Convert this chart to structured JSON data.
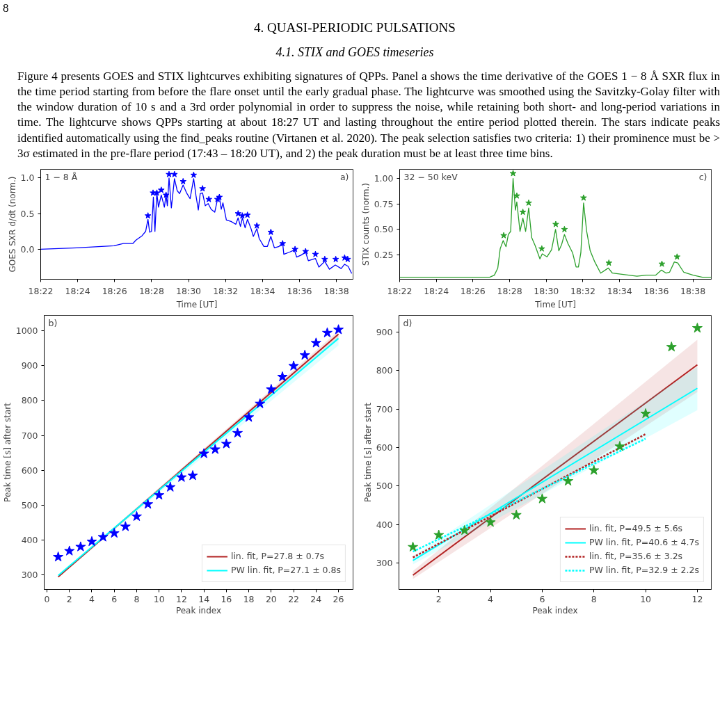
{
  "chart_data": [
    {
      "type": "other",
      "title": "4. QUASI-PERIODIC PULSATIONS",
      "subtitle": "4.1. STIX and GOES timeseries",
      "annotations": [
        "8",
        "Figure 4 presents GOES and STIX lightcurves exhibiting signatures of QPPs. Panel a shows the time derivative of the GOES 1 − 8 Å SXR flux in the time period starting from before the flare onset until the early gradual phase. The lightcurve was smoothed using the Savitzky-Golay filter with the window duration of 10 s and a 3rd order polynomial in order to suppress the noise, while retaining both short- and long-period variations in time. The lightcurve shows QPPs starting at about 18:27 UT and lasting throughout the entire period plotted therein. The stars indicate peaks identified automatically using the find_peaks routine (Virtanen et al. 2020). The peak selection satisfies two criteria: 1) their prominence must be > 3σ estimated in the pre-flare period (17:43 – 18:20 UT), and 2) the peak duration must be at least three time bins."
      ]
    },
    {
      "type": "line",
      "xlabel": "Time [UT]",
      "ylabel": "GOES SXR d/dt (norm.)",
      "annotations": [
        "1 − 8 Å",
        "a)"
      ],
      "grid": false,
      "legend": false,
      "xlim": [
        18.3667,
        18.6483
      ],
      "ylim": [
        -0.42,
        1.12
      ],
      "xticks": [
        {
          "value": 18.3667,
          "label": "18:22"
        },
        {
          "value": 18.4,
          "label": "18:24"
        },
        {
          "value": 18.4333,
          "label": "18:26"
        },
        {
          "value": 18.4667,
          "label": "18:28"
        },
        {
          "value": 18.5,
          "label": "18:30"
        },
        {
          "value": 18.5333,
          "label": "18:32"
        },
        {
          "value": 18.5667,
          "label": "18:34"
        },
        {
          "value": 18.6,
          "label": "18:36"
        },
        {
          "value": 18.6333,
          "label": "18:38"
        }
      ],
      "yticks": [
        {
          "value": 0,
          "label": "0.0"
        },
        0.5,
        {
          "value": 1,
          "label": "1.0"
        }
      ],
      "series": [
        {
          "type": "line",
          "color": "#0000ff",
          "x": [
            18.3667,
            18.399,
            18.4328,
            18.4412,
            18.4497,
            18.4528,
            18.4581,
            18.4613,
            18.4634,
            18.4649,
            18.4666,
            18.4683,
            18.4697,
            18.4714,
            18.4729,
            18.4754,
            18.4782,
            18.4797,
            18.4809,
            18.4824,
            18.4845,
            18.4873,
            18.4898,
            18.4919,
            18.4951,
            18.4982,
            18.5014,
            18.5046,
            18.5067,
            18.5088,
            18.5105,
            18.5126,
            18.5151,
            18.5177,
            18.5204,
            18.5236,
            18.5261,
            18.5278,
            18.5295,
            18.531,
            18.5341,
            18.5383,
            18.5426,
            18.5447,
            18.5468,
            18.5485,
            18.551,
            18.5531,
            18.5563,
            18.5584,
            18.5616,
            18.5637,
            18.5679,
            18.5711,
            18.5742,
            18.5774,
            18.5816,
            18.5848,
            18.5859,
            18.5911,
            18.5954,
            18.5975,
            18.6017,
            18.6055,
            18.608,
            18.6144,
            18.6175,
            18.6228,
            18.627,
            18.6323,
            18.6376,
            18.6407,
            18.6439,
            18.6471
          ],
          "values": [
            0.0,
            0.02,
            0.05,
            0.08,
            0.08,
            0.13,
            0.19,
            0.25,
            0.42,
            0.24,
            0.25,
            0.73,
            0.25,
            0.79,
            0.59,
            0.76,
            0.59,
            0.76,
            0.61,
            1.0,
            0.58,
            0.99,
            0.82,
            0.78,
            0.9,
            0.79,
            0.71,
            0.99,
            0.75,
            0.55,
            0.78,
            0.79,
            0.61,
            0.64,
            0.56,
            0.52,
            0.7,
            0.73,
            0.56,
            0.65,
            0.41,
            0.39,
            0.35,
            0.44,
            0.32,
            0.44,
            0.3,
            0.42,
            0.29,
            0.18,
            0.29,
            0.15,
            0.04,
            0.04,
            0.18,
            0.02,
            0.04,
            0.09,
            -0.07,
            -0.04,
            -0.01,
            -0.11,
            -0.08,
            -0.04,
            -0.16,
            -0.13,
            -0.25,
            -0.17,
            -0.28,
            -0.22,
            -0.27,
            -0.21,
            -0.24,
            -0.34
          ]
        },
        {
          "type": "scatter",
          "marker": "star",
          "color": "#0000ff",
          "x": [
            18.4634,
            18.468,
            18.4714,
            18.4754,
            18.4797,
            18.4824,
            18.4873,
            18.4951,
            18.5046,
            18.5126,
            18.5183,
            18.5261,
            18.5278,
            18.5447,
            18.5485,
            18.5531,
            18.5616,
            18.5742,
            18.5848,
            18.596,
            18.6055,
            18.6144,
            18.6228,
            18.6327,
            18.6407,
            18.6435
          ],
          "values": [
            0.47,
            0.79,
            0.79,
            0.83,
            0.76,
            1.05,
            1.05,
            0.95,
            1.04,
            0.85,
            0.7,
            0.7,
            0.73,
            0.5,
            0.47,
            0.48,
            0.33,
            0.24,
            0.08,
            0.0,
            -0.03,
            -0.07,
            -0.14,
            -0.14,
            -0.12,
            -0.14
          ]
        }
      ]
    },
    {
      "type": "line",
      "xlabel": "Time [UT]",
      "ylabel": "STIX counts (norm.)",
      "annotations": [
        "32 − 50 keV",
        "c)"
      ],
      "grid": false,
      "legend": false,
      "xlim": [
        18.3667,
        18.65
      ],
      "ylim": [
        0.01,
        1.09
      ],
      "xticks": [
        {
          "value": 18.3667,
          "label": "18:22"
        },
        {
          "value": 18.4,
          "label": "18:24"
        },
        {
          "value": 18.4333,
          "label": "18:26"
        },
        {
          "value": 18.4667,
          "label": "18:28"
        },
        {
          "value": 18.5,
          "label": "18:30"
        },
        {
          "value": 18.5333,
          "label": "18:32"
        },
        {
          "value": 18.5667,
          "label": "18:34"
        },
        {
          "value": 18.6,
          "label": "18:36"
        },
        {
          "value": 18.6333,
          "label": "18:38"
        }
      ],
      "yticks": [
        0.25,
        {
          "value": 0.5,
          "label": "0.50"
        },
        0.75,
        {
          "value": 1.0,
          "label": "1.00"
        }
      ],
      "series": [
        {
          "type": "line",
          "color": "#2ca02c",
          "x": [
            18.3667,
            18.4485,
            18.4528,
            18.4559,
            18.4581,
            18.4608,
            18.4634,
            18.4655,
            18.4676,
            18.4698,
            18.4719,
            18.4732,
            18.4761,
            18.4787,
            18.4812,
            18.484,
            18.4867,
            18.4899,
            18.4942,
            18.4963,
            18.5006,
            18.5048,
            18.5084,
            18.5114,
            18.5139,
            18.5165,
            18.5197,
            18.5239,
            18.5271,
            18.5292,
            18.5314,
            18.5339,
            18.5367,
            18.5399,
            18.5441,
            18.5494,
            18.5564,
            18.5601,
            18.5675,
            18.5824,
            18.5909,
            18.5994,
            18.6047,
            18.6089,
            18.6121,
            18.6164,
            18.6195,
            18.6249,
            18.6334,
            18.6419,
            18.6499
          ],
          "values": [
            0.03,
            0.03,
            0.05,
            0.12,
            0.31,
            0.39,
            0.33,
            0.45,
            0.48,
            1.0,
            0.69,
            0.77,
            0.48,
            0.61,
            0.48,
            0.71,
            0.42,
            0.34,
            0.21,
            0.26,
            0.23,
            0.3,
            0.5,
            0.29,
            0.35,
            0.45,
            0.36,
            0.27,
            0.13,
            0.13,
            0.27,
            0.76,
            0.48,
            0.29,
            0.18,
            0.07,
            0.12,
            0.07,
            0.06,
            0.04,
            0.05,
            0.05,
            0.1,
            0.07,
            0.08,
            0.18,
            0.17,
            0.08,
            0.05,
            0.03,
            0.03
          ]
        },
        {
          "type": "scatter",
          "marker": "star",
          "color": "#2ca02c",
          "x": [
            18.4613,
            18.4698,
            18.4732,
            18.4787,
            18.484,
            18.4959,
            18.5086,
            18.5165,
            18.5339,
            18.5569,
            18.6051,
            18.6189
          ],
          "values": [
            0.44,
            1.05,
            0.83,
            0.67,
            0.76,
            0.31,
            0.55,
            0.5,
            0.81,
            0.17,
            0.16,
            0.23
          ]
        }
      ]
    },
    {
      "type": "scatter",
      "xlabel": "Peak index",
      "ylabel": "Peak time [s] after start",
      "annotations": [
        "b)"
      ],
      "grid": false,
      "legend": "bottom right",
      "xlim": [
        -0.25,
        27.3
      ],
      "ylim": [
        259,
        1044
      ],
      "xticks": [
        0,
        2,
        4,
        6,
        8,
        10,
        12,
        14,
        16,
        18,
        20,
        22,
        24,
        26
      ],
      "yticks": [
        300,
        400,
        500,
        600,
        700,
        800,
        900,
        1000
      ],
      "series": [
        {
          "type": "line",
          "name": "lin. fit, P=27.8 ± 0.7s",
          "color": "#b22222",
          "x": [
            1,
            26
          ],
          "values": [
            295,
            990
          ],
          "lower": [
            293,
            980
          ],
          "upper": [
            297,
            1000
          ]
        },
        {
          "type": "line",
          "name": "PW lin. fit, P=27.1 ± 0.8s",
          "color": "#00ffff",
          "x": [
            1,
            26
          ],
          "values": [
            299,
            978
          ],
          "lower": [
            297,
            958
          ],
          "upper": [
            301,
            985
          ]
        },
        {
          "type": "scatter",
          "marker": "star",
          "color": "#0000ff",
          "x": [
            1,
            2,
            3,
            4,
            5,
            6,
            7,
            8,
            9,
            10,
            11,
            12,
            13,
            14,
            15,
            16,
            17,
            18,
            19,
            20,
            21,
            22,
            23,
            24,
            25,
            26
          ],
          "values": [
            352,
            369,
            381,
            396,
            409,
            420,
            439,
            468,
            503,
            529,
            552,
            580,
            585,
            648,
            660,
            676,
            707,
            752,
            791,
            832,
            868,
            899,
            930,
            965,
            994,
            1003
          ]
        }
      ]
    },
    {
      "type": "scatter",
      "xlabel": "Peak index",
      "ylabel": "Peak time [s] after start",
      "annotations": [
        "d)"
      ],
      "grid": false,
      "legend": "bottom right",
      "xlim": [
        0.46,
        12.54
      ],
      "ylim": [
        232,
        943
      ],
      "xticks": [
        2,
        4,
        6,
        8,
        10,
        12
      ],
      "yticks": [
        300,
        400,
        500,
        600,
        700,
        800,
        900
      ],
      "series": [
        {
          "type": "line",
          "name": "lin. fit, P=49.5 ± 5.6s",
          "color": "#b22222",
          "x": [
            1,
            12
          ],
          "values": [
            269,
            815
          ],
          "lower": [
            259,
            744
          ],
          "upper": [
            280,
            880
          ]
        },
        {
          "type": "line",
          "name": "PW lin. fit, P=40.6 ± 4.7s",
          "color": "#00ffff",
          "x": [
            1,
            12
          ],
          "values": [
            307,
            754
          ],
          "lower": [
            297,
            697
          ],
          "upper": [
            318,
            809
          ]
        },
        {
          "type": "line",
          "name": "lin. fit, P=35.6 ± 3.2s",
          "color": "#b22222",
          "line_style": "dotted",
          "x": [
            1,
            10
          ],
          "values": [
            315,
            635
          ]
        },
        {
          "type": "line",
          "name": "PW lin. fit, P=32.9 ± 2.2s",
          "color": "#00ffff",
          "line_style": "dotted",
          "x": [
            1,
            10
          ],
          "values": [
            330,
            623
          ]
        },
        {
          "type": "scatter",
          "marker": "star",
          "color": "#2ca02c",
          "x": [
            1,
            2,
            3,
            4,
            5,
            6,
            7,
            8,
            9,
            10,
            11,
            12
          ],
          "values": [
            342,
            373,
            385,
            406,
            425,
            467,
            513,
            541,
            603,
            688,
            861,
            910
          ]
        }
      ]
    }
  ]
}
